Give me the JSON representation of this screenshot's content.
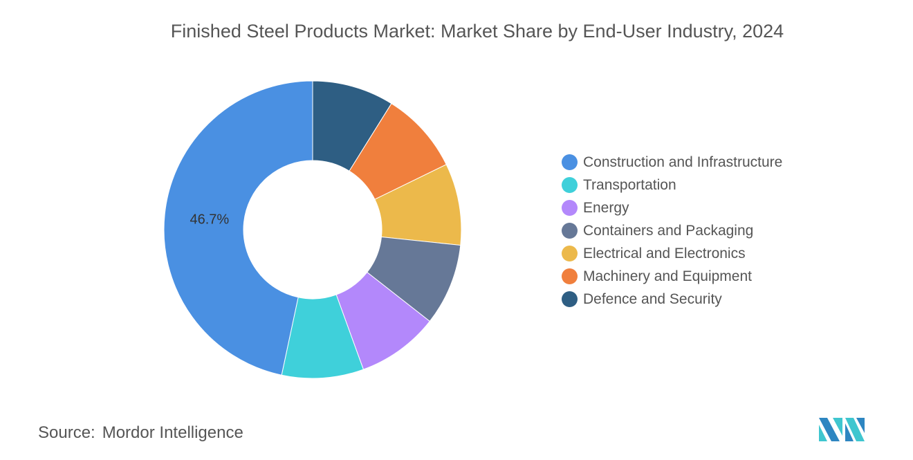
{
  "chart_data": {
    "type": "pie",
    "title": "Finished Steel Products Market: Market Share by End-User Industry, 2024",
    "categories": [
      "Construction and Infrastructure",
      "Transportation",
      "Energy",
      "Containers and Packaging",
      "Electrical and Electronics",
      "Machinery and Equipment",
      "Defence and Security"
    ],
    "values": [
      46.7,
      8.9,
      8.9,
      8.9,
      8.9,
      8.9,
      8.9
    ],
    "colors": [
      "#4a90e2",
      "#3fd0da",
      "#b388fb",
      "#667897",
      "#ecb94b",
      "#f07f3d",
      "#2e5e83"
    ],
    "data_labels": [
      "46.7%",
      "",
      "",
      "",
      "",
      "",
      ""
    ],
    "donut": true,
    "legend": "right"
  },
  "source": {
    "label": "Source:",
    "value": "Mordor Intelligence"
  }
}
